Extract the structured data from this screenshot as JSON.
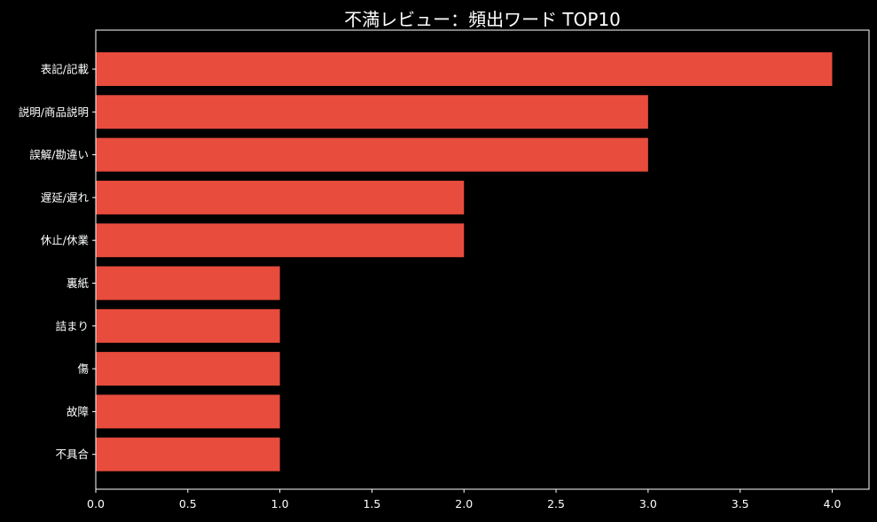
{
  "chart_data": {
    "type": "bar",
    "orientation": "horizontal",
    "title": "不満レビュー：頻出ワード TOP10",
    "xlabel": "",
    "ylabel": "",
    "categories": [
      "表記/記載",
      "説明/商品説明",
      "誤解/勘違い",
      "遅延/遅れ",
      "休止/休業",
      "裏紙",
      "詰まり",
      "傷",
      "故障",
      "不具合"
    ],
    "values": [
      4,
      3,
      3,
      2,
      2,
      1,
      1,
      1,
      1,
      1
    ],
    "xlim": [
      0,
      4.2
    ],
    "xticks": [
      "0.0",
      "0.5",
      "1.0",
      "1.5",
      "2.0",
      "2.5",
      "3.0",
      "3.5",
      "4.0"
    ],
    "grid": false,
    "colors": {
      "bar": "#e84c3d",
      "background": "#000000",
      "axis": "#ffffff",
      "text": "#ffffff"
    }
  }
}
